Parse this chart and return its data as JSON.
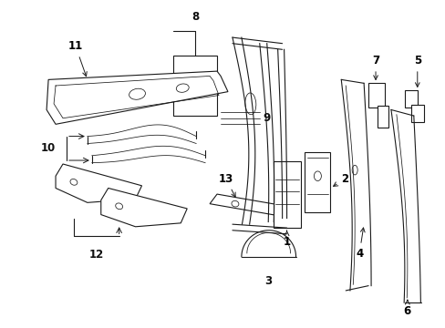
{
  "bg_color": "#ffffff",
  "fig_width": 4.89,
  "fig_height": 3.6,
  "dpi": 100,
  "line_color": "#1a1a1a",
  "label_fontsize": 8.5,
  "label_color": "#111111"
}
